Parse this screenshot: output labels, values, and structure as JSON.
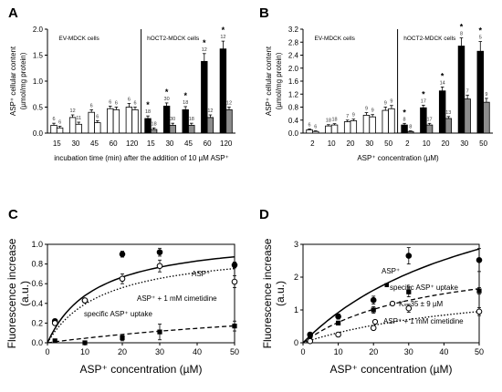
{
  "figure": {
    "title": ""
  },
  "colors": {
    "white_bar": "#ffffff",
    "black_bar": "#000000",
    "grey_bar": "#8c8c8c",
    "axis": "#000000"
  },
  "chart_data": [
    {
      "panel": "A",
      "type": "bar",
      "ylabel_lines": [
        "ASP⁺ cellular content",
        "(µmol/mg protein)"
      ],
      "xlabel": "incubation time (min) after the addition of 10 µM ASP⁺",
      "ylim": [
        0,
        2.0
      ],
      "yticks": [
        "0.0",
        "0.5",
        "1.0",
        "1.5",
        "2.0"
      ],
      "groups": [
        {
          "label": "EV-MDCK cells",
          "categories": [
            "15",
            "30",
            "45",
            "60",
            "120"
          ],
          "series": [
            {
              "style": "white",
              "values": [
                0.15,
                0.3,
                0.4,
                0.47,
                0.5
              ],
              "errors": [
                0.04,
                0.05,
                0.05,
                0.05,
                0.07
              ],
              "n": [
                "6",
                "12",
                "6",
                "6",
                "6"
              ],
              "significant": [
                false,
                false,
                false,
                false,
                false
              ]
            },
            {
              "style": "white",
              "values": [
                0.1,
                0.17,
                0.2,
                0.45,
                0.45
              ],
              "errors": [
                0.03,
                0.04,
                0.04,
                0.05,
                0.05
              ],
              "n": [
                "6",
                "11",
                "6",
                "6",
                "6"
              ],
              "significant": [
                false,
                false,
                false,
                false,
                false
              ]
            }
          ]
        },
        {
          "label": "hOCT2-MDCK cells",
          "categories": [
            "15",
            "30",
            "45",
            "60",
            "120"
          ],
          "series": [
            {
              "style": "black",
              "values": [
                0.28,
                0.52,
                0.45,
                1.38,
                1.62
              ],
              "errors": [
                0.05,
                0.06,
                0.06,
                0.15,
                0.15
              ],
              "n": [
                "18",
                "30",
                "18",
                "12",
                "12"
              ],
              "significant": [
                true,
                true,
                true,
                true,
                true
              ]
            },
            {
              "style": "grey",
              "values": [
                0.07,
                0.15,
                0.15,
                0.3,
                0.45
              ],
              "errors": [
                0.03,
                0.04,
                0.04,
                0.05,
                0.05
              ],
              "n": [
                "18",
                "30",
                "18",
                "12",
                "12"
              ],
              "significant": [
                false,
                false,
                false,
                false,
                false
              ]
            }
          ]
        }
      ]
    },
    {
      "panel": "B",
      "type": "bar",
      "ylabel_lines": [
        "ASP⁺ cellular content",
        "(µmol/mg protein)"
      ],
      "xlabel": "ASP⁺ concentration (µM)",
      "ylim": [
        0,
        3.2
      ],
      "yticks": [
        "0.0",
        "0.4",
        "0.8",
        "1.2",
        "1.6",
        "2.0",
        "2.4",
        "2.8",
        "3.2"
      ],
      "groups": [
        {
          "label": "EV-MDCK cells",
          "categories": [
            "2",
            "10",
            "20",
            "30",
            "50"
          ],
          "series": [
            {
              "style": "white",
              "values": [
                0.1,
                0.22,
                0.35,
                0.55,
                0.7
              ],
              "errors": [
                0.03,
                0.04,
                0.05,
                0.08,
                0.1
              ],
              "n": [
                "6",
                "18",
                "7",
                "9",
                "9"
              ],
              "significant": [
                false,
                false,
                false,
                false,
                false
              ]
            },
            {
              "style": "white",
              "values": [
                0.05,
                0.25,
                0.38,
                0.5,
                0.75
              ],
              "errors": [
                0.02,
                0.04,
                0.05,
                0.07,
                0.1
              ],
              "n": [
                "6",
                "18",
                "9",
                "9",
                "9"
              ],
              "significant": [
                false,
                false,
                false,
                false,
                false
              ]
            }
          ]
        },
        {
          "label": "hOCT2-MDCK cells",
          "categories": [
            "2",
            "10",
            "20",
            "30",
            "50"
          ],
          "series": [
            {
              "style": "black",
              "values": [
                0.25,
                0.78,
                1.3,
                2.68,
                2.52
              ],
              "errors": [
                0.05,
                0.08,
                0.12,
                0.25,
                0.3
              ],
              "n": [
                "8",
                "17",
                "14",
                "8",
                "5"
              ],
              "significant": [
                true,
                true,
                true,
                true,
                true
              ]
            },
            {
              "style": "grey",
              "values": [
                0.05,
                0.25,
                0.45,
                1.05,
                0.95
              ],
              "errors": [
                0.02,
                0.05,
                0.06,
                0.12,
                0.12
              ],
              "n": [
                "8",
                "17",
                "13",
                "7",
                "9"
              ],
              "significant": [
                false,
                false,
                false,
                false,
                false
              ]
            }
          ]
        }
      ]
    },
    {
      "panel": "C",
      "type": "scatter",
      "xlabel": "ASP⁺ concentration (µM)",
      "ylabel_lines": [
        "Fluorescence increase",
        "(a.u.)"
      ],
      "xlim": [
        0,
        50
      ],
      "ylim": [
        0,
        1.0
      ],
      "xticks": [
        "0",
        "10",
        "20",
        "30",
        "40",
        "50"
      ],
      "yticks": [
        "0.0",
        "0.2",
        "0.4",
        "0.6",
        "0.8",
        "1.0"
      ],
      "series": [
        {
          "name": "ASP⁺",
          "marker": "filled-circle",
          "line": "solid",
          "x": [
            2,
            10,
            20,
            30,
            50
          ],
          "y": [
            0.22,
            0.43,
            0.9,
            0.92,
            0.79
          ],
          "yerr": [
            0.02,
            0.02,
            0.03,
            0.04,
            0.03
          ],
          "fit": {
            "vmax": 1.1,
            "km": 13
          }
        },
        {
          "name": "ASP⁺ + 1 mM cimetidine",
          "marker": "open-circle",
          "line": "dotted",
          "x": [
            2,
            10,
            20,
            30,
            50
          ],
          "y": [
            0.2,
            0.43,
            0.65,
            0.78,
            0.62
          ],
          "yerr": [
            0.02,
            0.02,
            0.05,
            0.06,
            0.06
          ],
          "fit": {
            "vmax": 0.98,
            "km": 15
          }
        },
        {
          "name": "specific ASP⁺ uptake",
          "marker": "filled-square",
          "line": "dashed",
          "x": [
            2,
            10,
            20,
            30,
            50
          ],
          "y": [
            0.02,
            0.0,
            0.05,
            0.11,
            0.17
          ],
          "yerr": [
            0.01,
            0.01,
            0.03,
            0.08,
            0.05
          ],
          "fit": {
            "vmax": 0.55,
            "km": 110
          }
        }
      ]
    },
    {
      "panel": "D",
      "type": "scatter",
      "xlabel": "ASP⁺ concentration (µM)",
      "ylabel_lines": [
        "Fluorescence increase",
        "(a.u.)"
      ],
      "xlim": [
        0,
        50
      ],
      "ylim": [
        0,
        3.0
      ],
      "xticks": [
        "0",
        "10",
        "20",
        "30",
        "40",
        "50"
      ],
      "yticks": [
        "0",
        "1",
        "2",
        "3"
      ],
      "annotation": "Kₘ 35 ± 9 µM",
      "series": [
        {
          "name": "ASP⁺",
          "marker": "filled-circle",
          "line": "solid",
          "x": [
            2,
            10,
            20,
            30,
            50
          ],
          "y": [
            0.25,
            0.8,
            1.3,
            2.65,
            2.52
          ],
          "yerr": [
            0.05,
            0.08,
            0.12,
            0.25,
            0.35
          ],
          "fit": {
            "vmax": 6.0,
            "km": 55
          }
        },
        {
          "name": "specific ASP⁺ uptake",
          "marker": "filled-square",
          "line": "dashed",
          "x": [
            2,
            10,
            20,
            30,
            50
          ],
          "y": [
            0.2,
            0.6,
            1.0,
            1.55,
            1.58
          ],
          "yerr": [
            0.04,
            0.06,
            0.1,
            0.15,
            0.1
          ],
          "fit": {
            "vmax": 2.8,
            "km": 35
          }
        },
        {
          "name": "ASP⁺ + 1 mM cimetidine",
          "marker": "open-circle",
          "line": "dotted",
          "x": [
            2,
            10,
            20,
            30,
            50
          ],
          "y": [
            0.05,
            0.25,
            0.45,
            1.05,
            0.95
          ],
          "yerr": [
            0.02,
            0.04,
            0.05,
            0.12,
            0.12
          ],
          "fit": {
            "vmax": 2.0,
            "km": 55
          }
        }
      ]
    }
  ]
}
